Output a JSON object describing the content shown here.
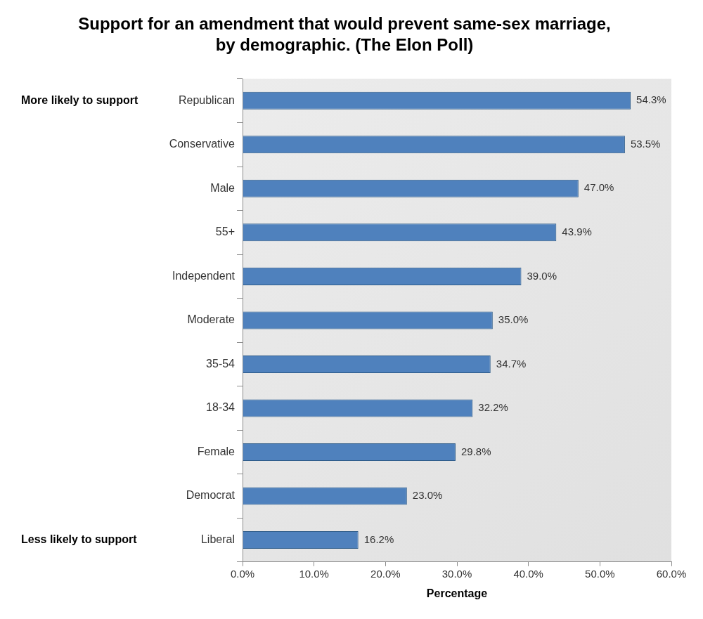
{
  "chart_data": {
    "type": "bar",
    "orientation": "horizontal",
    "title": "Support for an amendment that would prevent same-sex marriage, by demographic. (The Elon Poll)",
    "x_label": "Percentage",
    "annotations": [
      "More likely to support",
      "Less likely to support"
    ],
    "categories": [
      "Republican",
      "Conservative",
      "Male",
      "55+",
      "Independent",
      "Moderate",
      "35-54",
      "18-34",
      "Female",
      "Democrat",
      "Liberal"
    ],
    "values": [
      54.3,
      53.5,
      47.0,
      43.9,
      39.0,
      35.0,
      34.7,
      32.2,
      29.8,
      23.0,
      16.2
    ],
    "value_labels": [
      "54.3%",
      "53.5%",
      "47.0%",
      "43.9%",
      "39.0%",
      "35.0%",
      "34.7%",
      "32.2%",
      "29.8%",
      "23.0%",
      "16.2%"
    ],
    "color": "#4f81bd",
    "xlim": [
      0,
      60
    ],
    "xticks": [
      {
        "value": 0,
        "label": "0.0%"
      },
      {
        "value": 10,
        "label": "10.0%"
      },
      {
        "value": 20,
        "label": "20.0%"
      },
      {
        "value": 30,
        "label": "30.0%"
      },
      {
        "value": 40,
        "label": "40.0%"
      },
      {
        "value": 50,
        "label": "50.0%"
      },
      {
        "value": 60,
        "label": "60.0%"
      }
    ],
    "grid": false,
    "data_labels": true
  }
}
